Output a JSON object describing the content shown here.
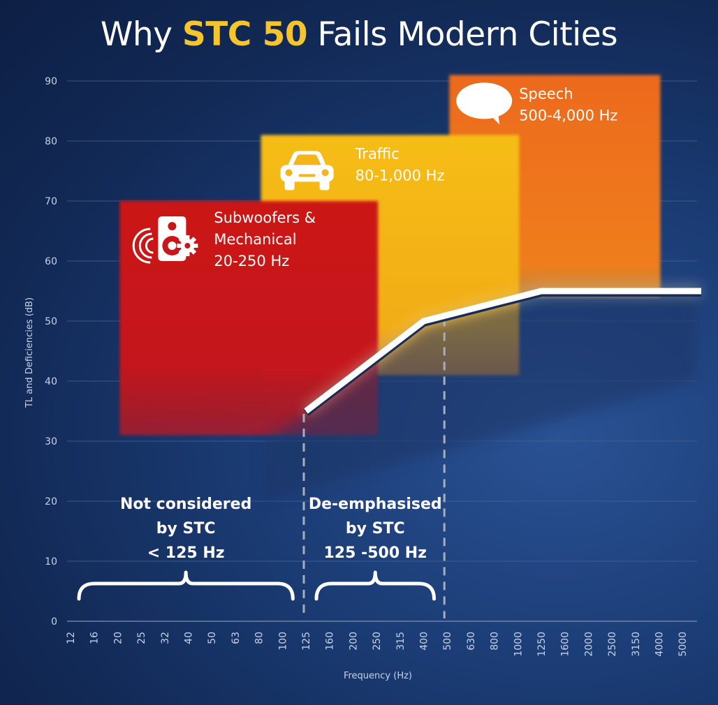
{
  "title": {
    "prefix": "Why ",
    "highlight": "STC 50",
    "suffix": " Fails Modern Cities"
  },
  "colors": {
    "highlight": "#f6c52c",
    "subwoofers": "#c8161b",
    "traffic": "#f4b51a",
    "speech": "#ec6d1a",
    "curve": "#ffffff"
  },
  "chart_data": {
    "type": "line",
    "xlabel": "Frequency (Hz)",
    "ylabel": "TL and Deficiencies (dB)",
    "ylim": [
      0,
      90
    ],
    "yticks": [
      0,
      10,
      20,
      30,
      40,
      50,
      60,
      70,
      80,
      90
    ],
    "grid": true,
    "categories": [
      "12",
      "16",
      "20",
      "25",
      "32",
      "40",
      "50",
      "63",
      "80",
      "100",
      "125",
      "160",
      "200",
      "250",
      "315",
      "400",
      "500",
      "630",
      "800",
      "1000",
      "1250",
      "1600",
      "2000",
      "2500",
      "3150",
      "4000",
      "5000"
    ],
    "series": [
      {
        "x": [
          "125",
          "160",
          "200",
          "250",
          "315",
          "400",
          "500",
          "630",
          "800",
          "1000",
          "1250",
          "1600",
          "2000",
          "2500",
          "3150",
          "4000",
          "5000"
        ],
        "values": [
          35,
          38,
          41,
          44,
          47,
          50,
          51,
          52,
          53,
          54,
          55,
          55,
          55,
          55,
          55,
          55,
          55
        ]
      }
    ],
    "bands": [
      {
        "icon": "speaker-icon",
        "name_lines": [
          "Subwoofers &",
          "Mechanical"
        ],
        "range": "20-250 Hz",
        "x_start": "20",
        "x_end": "250",
        "top": 70,
        "bottom": 31
      },
      {
        "icon": "car-icon",
        "name_lines": [
          "Traffic"
        ],
        "range": "80-1,000 Hz",
        "x_start": "80",
        "x_end": "1000",
        "top": 81,
        "bottom": 41
      },
      {
        "icon": "speech-bubble-icon",
        "name_lines": [
          "Speech"
        ],
        "range": "500-4,000 Hz",
        "x_start": "500",
        "x_end": "4000",
        "top": 91,
        "bottom": 54
      }
    ],
    "annotations": [
      {
        "lines": [
          "Not considered",
          "by STC",
          "< 125 Hz"
        ],
        "x_start": "12",
        "x_end": "100"
      },
      {
        "lines": [
          "De-emphasised",
          "by STC",
          "125 -500 Hz"
        ],
        "x_start": "125",
        "x_end": "400"
      }
    ],
    "dividers": [
      "125",
      "500"
    ]
  }
}
